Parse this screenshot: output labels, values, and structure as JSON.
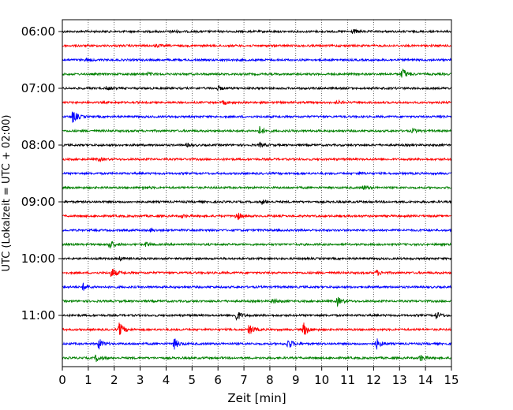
{
  "chart_data": {
    "type": "line",
    "title": "",
    "xlabel": "Zeit  [min]",
    "ylabel": "UTC (Lokalzeit = UTC + 02:00)",
    "xlim": [
      0,
      15
    ],
    "x_ticks": [
      "0",
      "1",
      "2",
      "3",
      "4",
      "5",
      "6",
      "7",
      "8",
      "9",
      "10",
      "11",
      "12",
      "13",
      "14",
      "15"
    ],
    "y_ticks": [
      "06:00",
      "07:00",
      "08:00",
      "09:00",
      "10:00",
      "11:00"
    ],
    "row_interval_minutes": 15,
    "first_row": "06:00",
    "grid": "vertical dotted lines at each minute",
    "trace_colors": [
      "#000000",
      "#ff0000",
      "#0000ff",
      "#008000"
    ],
    "rows": [
      {
        "start": "06:00",
        "color": "#000000",
        "events": [
          {
            "t": 11.2,
            "amp": 0.3
          },
          {
            "t": 4.2,
            "amp": 0.2
          }
        ]
      },
      {
        "start": "06:15",
        "color": "#ff0000",
        "events": [
          {
            "t": 3.6,
            "amp": 0.2
          }
        ]
      },
      {
        "start": "06:30",
        "color": "#0000ff",
        "events": [
          {
            "t": 0.9,
            "amp": 0.2
          }
        ]
      },
      {
        "start": "06:45",
        "color": "#008000",
        "events": [
          {
            "t": 13.1,
            "amp": 0.9
          },
          {
            "t": 3.3,
            "amp": 0.2
          }
        ]
      },
      {
        "start": "07:00",
        "color": "#000000",
        "events": [
          {
            "t": 6.0,
            "amp": 0.3
          },
          {
            "t": 1.7,
            "amp": 0.2
          }
        ]
      },
      {
        "start": "07:15",
        "color": "#ff0000",
        "events": [
          {
            "t": 6.2,
            "amp": 0.3
          },
          {
            "t": 10.6,
            "amp": 0.2
          }
        ]
      },
      {
        "start": "07:30",
        "color": "#0000ff",
        "events": [
          {
            "t": 0.4,
            "amp": 0.9
          },
          {
            "t": 14.5,
            "amp": 0.2
          }
        ]
      },
      {
        "start": "07:45",
        "color": "#008000",
        "events": [
          {
            "t": 7.6,
            "amp": 0.6
          },
          {
            "t": 13.5,
            "amp": 0.3
          }
        ]
      },
      {
        "start": "08:00",
        "color": "#000000",
        "events": [
          {
            "t": 7.6,
            "amp": 0.3
          },
          {
            "t": 4.8,
            "amp": 0.2
          }
        ]
      },
      {
        "start": "08:15",
        "color": "#ff0000",
        "events": [
          {
            "t": 1.4,
            "amp": 0.2
          }
        ]
      },
      {
        "start": "08:30",
        "color": "#0000ff",
        "events": [
          {
            "t": 11.4,
            "amp": 0.2
          }
        ]
      },
      {
        "start": "08:45",
        "color": "#008000",
        "events": [
          {
            "t": 11.6,
            "amp": 0.3
          },
          {
            "t": 3.1,
            "amp": 0.2
          }
        ]
      },
      {
        "start": "09:00",
        "color": "#000000",
        "events": [
          {
            "t": 7.7,
            "amp": 0.3
          }
        ]
      },
      {
        "start": "09:15",
        "color": "#ff0000",
        "events": [
          {
            "t": 6.7,
            "amp": 0.7
          },
          {
            "t": 4.6,
            "amp": 0.2
          }
        ]
      },
      {
        "start": "09:30",
        "color": "#0000ff",
        "events": [
          {
            "t": 3.4,
            "amp": 0.2
          }
        ]
      },
      {
        "start": "09:45",
        "color": "#008000",
        "events": [
          {
            "t": 1.8,
            "amp": 0.7
          },
          {
            "t": 3.2,
            "amp": 0.3
          }
        ]
      },
      {
        "start": "10:00",
        "color": "#000000",
        "events": [
          {
            "t": 2.2,
            "amp": 0.2
          }
        ]
      },
      {
        "start": "10:15",
        "color": "#ff0000",
        "events": [
          {
            "t": 1.9,
            "amp": 0.8
          },
          {
            "t": 12.1,
            "amp": 0.4
          }
        ]
      },
      {
        "start": "10:30",
        "color": "#0000ff",
        "events": [
          {
            "t": 0.8,
            "amp": 0.5
          }
        ]
      },
      {
        "start": "10:45",
        "color": "#008000",
        "events": [
          {
            "t": 10.6,
            "amp": 0.6
          },
          {
            "t": 8.1,
            "amp": 0.4
          }
        ]
      },
      {
        "start": "11:00",
        "color": "#000000",
        "events": [
          {
            "t": 6.7,
            "amp": 0.8
          },
          {
            "t": 14.4,
            "amp": 0.5
          }
        ]
      },
      {
        "start": "11:15",
        "color": "#ff0000",
        "events": [
          {
            "t": 2.2,
            "amp": 1.0
          },
          {
            "t": 9.3,
            "amp": 1.0
          },
          {
            "t": 7.2,
            "amp": 0.8
          }
        ]
      },
      {
        "start": "11:30",
        "color": "#0000ff",
        "events": [
          {
            "t": 1.4,
            "amp": 0.8
          },
          {
            "t": 4.3,
            "amp": 0.8
          },
          {
            "t": 8.7,
            "amp": 0.8
          },
          {
            "t": 12.1,
            "amp": 0.8
          }
        ]
      },
      {
        "start": "11:45",
        "color": "#008000",
        "events": [
          {
            "t": 1.3,
            "amp": 0.5
          },
          {
            "t": 13.8,
            "amp": 0.5
          }
        ]
      }
    ]
  }
}
